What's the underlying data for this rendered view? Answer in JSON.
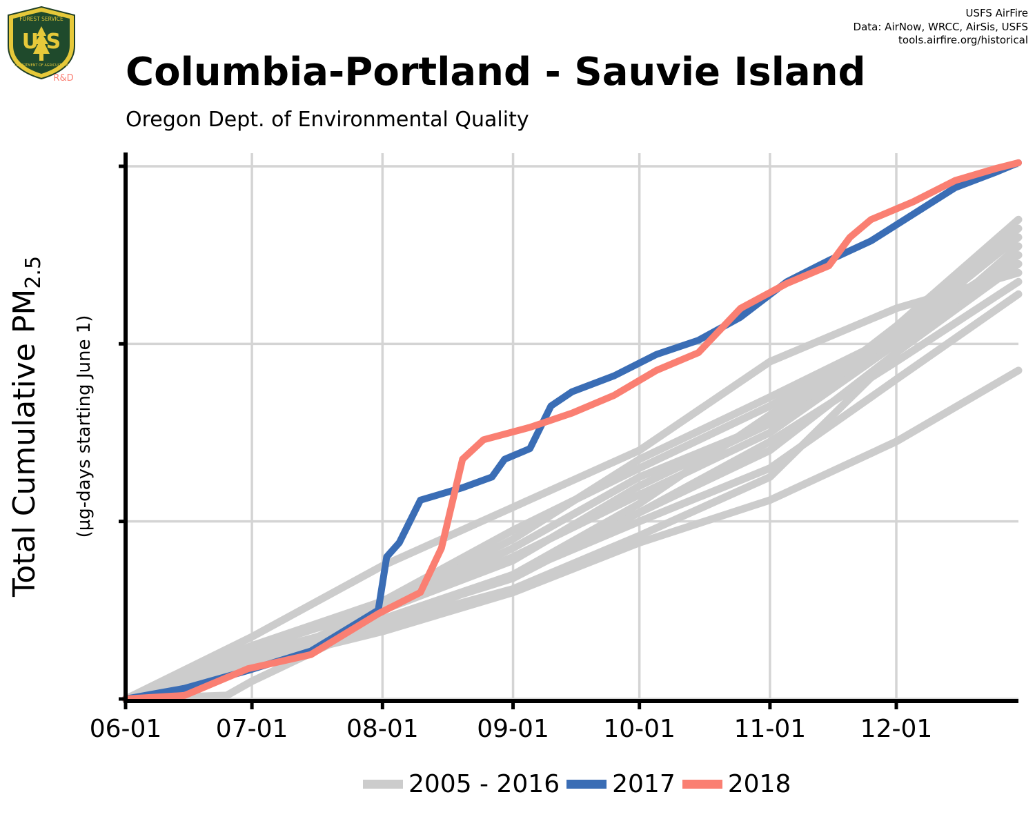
{
  "logo": {
    "top_text": "FOREST SERVICE",
    "letters": "U S",
    "bottom_text": "DEPARTMENT OF AGRICULTURE",
    "tag": "R&D"
  },
  "credits": [
    "USFS AirFire",
    "Data: AirNow, WRCC, AirSis, USFS",
    "tools.airfire.org/historical"
  ],
  "title": "Columbia-Portland - Sauvie Island",
  "subtitle": "Oregon Dept. of Environmental Quality",
  "ylabel_main": "Total Cumulative PM",
  "ylabel_sub": "2.5",
  "ylabel_units": "(µg-days starting June 1)",
  "colors": {
    "historical": "#cccccc",
    "y2017": "#3a6db5",
    "y2018": "#fa7f72",
    "grid": "#d4d4d4",
    "axis": "#000000"
  },
  "legend": [
    {
      "label": "2005 - 2016",
      "color": "#cccccc"
    },
    {
      "label": "2017",
      "color": "#3a6db5"
    },
    {
      "label": "2018",
      "color": "#fa7f72"
    }
  ],
  "chart_data": {
    "type": "line",
    "x_unit": "date (month-day, June 1 start)",
    "x_ticks": [
      "06-01",
      "07-01",
      "08-01",
      "09-01",
      "10-01",
      "11-01",
      "12-01"
    ],
    "xlim": [
      "06-01",
      "12-30"
    ],
    "ylim": [
      0,
      3
    ],
    "y_ticks_unlabeled": [
      0,
      1,
      2,
      3
    ],
    "grid": true,
    "legend_position": "bottom",
    "historical_range_label": "2005 - 2016",
    "series": [
      {
        "name": "2017",
        "color": "#3a6db5",
        "points": [
          [
            "06-01",
            0
          ],
          [
            "06-15",
            0.06
          ],
          [
            "06-30",
            0.16
          ],
          [
            "07-15",
            0.27
          ],
          [
            "07-31",
            0.5
          ],
          [
            "08-02",
            0.8
          ],
          [
            "08-05",
            0.88
          ],
          [
            "08-10",
            1.12
          ],
          [
            "08-20",
            1.19
          ],
          [
            "08-27",
            1.25
          ],
          [
            "08-30",
            1.35
          ],
          [
            "09-05",
            1.41
          ],
          [
            "09-10",
            1.65
          ],
          [
            "09-15",
            1.73
          ],
          [
            "09-25",
            1.82
          ],
          [
            "10-05",
            1.94
          ],
          [
            "10-15",
            2.02
          ],
          [
            "10-25",
            2.15
          ],
          [
            "11-05",
            2.35
          ],
          [
            "11-15",
            2.47
          ],
          [
            "11-25",
            2.58
          ],
          [
            "12-05",
            2.73
          ],
          [
            "12-15",
            2.88
          ],
          [
            "12-25",
            2.97
          ],
          [
            "12-30",
            3.02
          ]
        ]
      },
      {
        "name": "2018",
        "color": "#fa7f72",
        "points": [
          [
            "06-01",
            0
          ],
          [
            "06-15",
            0.02
          ],
          [
            "06-30",
            0.17
          ],
          [
            "07-15",
            0.25
          ],
          [
            "07-31",
            0.48
          ],
          [
            "08-10",
            0.6
          ],
          [
            "08-15",
            0.85
          ],
          [
            "08-20",
            1.35
          ],
          [
            "08-25",
            1.46
          ],
          [
            "09-05",
            1.53
          ],
          [
            "09-15",
            1.61
          ],
          [
            "09-25",
            1.71
          ],
          [
            "10-05",
            1.85
          ],
          [
            "10-15",
            1.95
          ],
          [
            "10-25",
            2.2
          ],
          [
            "11-05",
            2.34
          ],
          [
            "11-15",
            2.44
          ],
          [
            "11-20",
            2.6
          ],
          [
            "11-25",
            2.7
          ],
          [
            "12-05",
            2.8
          ],
          [
            "12-15",
            2.92
          ],
          [
            "12-25",
            2.99
          ],
          [
            "12-30",
            3.02
          ]
        ]
      },
      {
        "name": "",
        "color": "#cccccc",
        "points": [
          [
            "06-01",
            0
          ],
          [
            "07-01",
            0.3
          ],
          [
            "08-01",
            0.5
          ],
          [
            "09-01",
            0.8
          ],
          [
            "10-01",
            1.15
          ],
          [
            "11-01",
            1.5
          ],
          [
            "12-01",
            2.0
          ],
          [
            "12-30",
            2.5
          ]
        ]
      },
      {
        "name": "",
        "color": "#cccccc",
        "points": [
          [
            "06-01",
            0
          ],
          [
            "07-01",
            0.25
          ],
          [
            "08-01",
            0.45
          ],
          [
            "09-01",
            0.7
          ],
          [
            "10-01",
            1.05
          ],
          [
            "11-01",
            1.45
          ],
          [
            "12-01",
            1.9
          ],
          [
            "12-30",
            2.35
          ]
        ]
      },
      {
        "name": "",
        "color": "#cccccc",
        "points": [
          [
            "06-01",
            0
          ],
          [
            "07-01",
            0.35
          ],
          [
            "08-01",
            0.75
          ],
          [
            "09-01",
            1.08
          ],
          [
            "10-01",
            1.4
          ],
          [
            "11-01",
            1.9
          ],
          [
            "12-01",
            2.2
          ],
          [
            "12-30",
            2.4
          ]
        ]
      },
      {
        "name": "",
        "color": "#cccccc",
        "points": [
          [
            "06-01",
            0
          ],
          [
            "07-01",
            0.22
          ],
          [
            "08-01",
            0.45
          ],
          [
            "09-01",
            0.68
          ],
          [
            "10-01",
            1.05
          ],
          [
            "11-01",
            1.4
          ],
          [
            "12-01",
            1.95
          ],
          [
            "12-30",
            2.45
          ]
        ]
      },
      {
        "name": "",
        "color": "#cccccc",
        "points": [
          [
            "06-01",
            0
          ],
          [
            "07-01",
            0.28
          ],
          [
            "08-01",
            0.52
          ],
          [
            "09-01",
            0.9
          ],
          [
            "10-01",
            1.35
          ],
          [
            "11-01",
            1.7
          ],
          [
            "12-01",
            2.05
          ],
          [
            "12-30",
            2.65
          ]
        ]
      },
      {
        "name": "",
        "color": "#cccccc",
        "points": [
          [
            "06-01",
            0
          ],
          [
            "07-01",
            0.25
          ],
          [
            "08-01",
            0.42
          ],
          [
            "09-01",
            0.7
          ],
          [
            "10-01",
            1.0
          ],
          [
            "11-01",
            1.3
          ],
          [
            "12-01",
            1.8
          ],
          [
            "12-30",
            2.28
          ]
        ]
      },
      {
        "name": "",
        "color": "#cccccc",
        "points": [
          [
            "06-01",
            0
          ],
          [
            "07-01",
            0.3
          ],
          [
            "08-01",
            0.5
          ],
          [
            "09-01",
            0.78
          ],
          [
            "10-01",
            1.2
          ],
          [
            "11-01",
            1.55
          ],
          [
            "12-01",
            2.05
          ],
          [
            "12-30",
            2.6
          ]
        ]
      },
      {
        "name": "",
        "color": "#cccccc",
        "points": [
          [
            "06-01",
            0
          ],
          [
            "07-01",
            0.18
          ],
          [
            "08-01",
            0.42
          ],
          [
            "09-01",
            0.62
          ],
          [
            "10-01",
            0.92
          ],
          [
            "11-01",
            1.25
          ],
          [
            "12-01",
            1.95
          ],
          [
            "12-30",
            2.55
          ]
        ]
      },
      {
        "name": "",
        "color": "#cccccc",
        "points": [
          [
            "06-01",
            0
          ],
          [
            "07-01",
            0.2
          ],
          [
            "08-01",
            0.38
          ],
          [
            "09-01",
            0.6
          ],
          [
            "10-01",
            0.88
          ],
          [
            "11-01",
            1.12
          ],
          [
            "12-01",
            1.45
          ],
          [
            "12-30",
            1.85
          ]
        ]
      },
      {
        "name": "",
        "color": "#cccccc",
        "points": [
          [
            "06-01",
            0
          ],
          [
            "07-01",
            0.2
          ],
          [
            "08-01",
            0.5
          ],
          [
            "09-01",
            0.85
          ],
          [
            "10-01",
            1.25
          ],
          [
            "11-01",
            1.55
          ],
          [
            "12-01",
            2.1
          ],
          [
            "12-30",
            2.7
          ]
        ]
      },
      {
        "name": "",
        "color": "#cccccc",
        "points": [
          [
            "06-01",
            0
          ],
          [
            "07-01",
            0.3
          ],
          [
            "08-01",
            0.55
          ],
          [
            "09-01",
            0.95
          ],
          [
            "10-01",
            1.3
          ],
          [
            "11-01",
            1.65
          ],
          [
            "12-01",
            2.05
          ],
          [
            "12-30",
            2.45
          ]
        ]
      },
      {
        "name": "",
        "color": "#cccccc",
        "points": [
          [
            "06-01",
            0
          ],
          [
            "06-25",
            0.02
          ],
          [
            "07-01",
            0.1
          ],
          [
            "08-01",
            0.45
          ],
          [
            "09-01",
            0.7
          ],
          [
            "10-01",
            1.1
          ],
          [
            "11-01",
            1.6
          ],
          [
            "12-01",
            2.05
          ],
          [
            "12-30",
            2.5
          ]
        ]
      }
    ]
  }
}
